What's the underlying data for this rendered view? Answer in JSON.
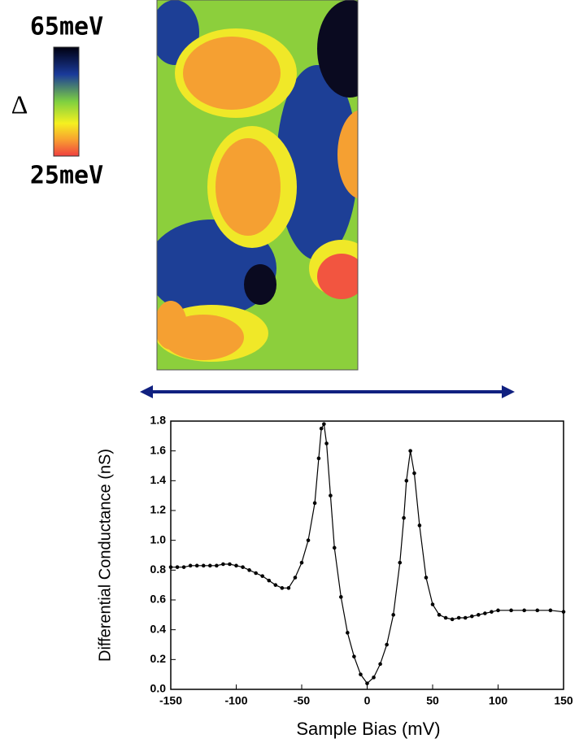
{
  "colorbar": {
    "top_label": "65meV",
    "bottom_label": "25meV",
    "symbol": "Δ"
  },
  "chart_data": {
    "type": "line",
    "xlabel": "Sample Bias (mV)",
    "ylabel": "Differential Conductance (nS)",
    "x": [
      -150,
      -145,
      -140,
      -135,
      -130,
      -125,
      -120,
      -115,
      -110,
      -105,
      -100,
      -95,
      -90,
      -85,
      -80,
      -75,
      -70,
      -65,
      -60,
      -55,
      -50,
      -45,
      -40,
      -37,
      -35,
      -33,
      -31,
      -28,
      -25,
      -20,
      -15,
      -10,
      -5,
      0,
      5,
      10,
      15,
      20,
      25,
      28,
      30,
      33,
      36,
      40,
      45,
      50,
      55,
      60,
      65,
      70,
      75,
      80,
      85,
      90,
      95,
      100,
      110,
      120,
      130,
      140,
      150
    ],
    "values": [
      0.82,
      0.82,
      0.82,
      0.83,
      0.83,
      0.83,
      0.83,
      0.83,
      0.84,
      0.84,
      0.83,
      0.82,
      0.8,
      0.78,
      0.76,
      0.73,
      0.7,
      0.68,
      0.68,
      0.75,
      0.85,
      1.0,
      1.25,
      1.55,
      1.75,
      1.78,
      1.65,
      1.3,
      0.95,
      0.62,
      0.38,
      0.22,
      0.1,
      0.04,
      0.08,
      0.17,
      0.3,
      0.5,
      0.85,
      1.15,
      1.4,
      1.6,
      1.45,
      1.1,
      0.75,
      0.57,
      0.5,
      0.48,
      0.47,
      0.48,
      0.48,
      0.49,
      0.5,
      0.51,
      0.52,
      0.53,
      0.53,
      0.53,
      0.53,
      0.53,
      0.52
    ],
    "color": "#000000",
    "xlim": [
      -150,
      150
    ],
    "xticks": [
      -150,
      -100,
      -50,
      0,
      50,
      100,
      150
    ],
    "ylim": [
      0,
      1.8
    ],
    "yticks": [
      {
        "value": 0,
        "label": "0.0"
      },
      0.2,
      0.4,
      0.6,
      0.8,
      {
        "value": 1,
        "label": "1.0"
      },
      1.2,
      1.4,
      1.6,
      1.8
    ]
  }
}
